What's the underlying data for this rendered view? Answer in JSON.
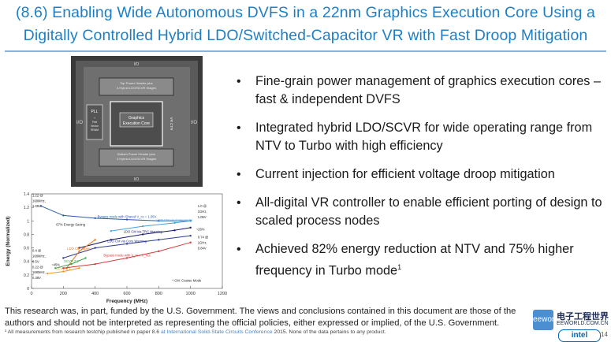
{
  "title": {
    "line1": "(8.6) Enabling Wide Autonomous DVFS in a 22nm Graphics Execution Core Using a",
    "line2": "Digitally Controlled Hybrid LDO/Switched-Capacitor VR with Fast Droop Mitigation"
  },
  "die": {
    "top_label_1": "Top Power Header plus",
    "top_label_2": "4 Hybrid LDO/SCVR Stages",
    "bottom_label_1": "Bottom Power Header plus",
    "bottom_label_2": "4 Hybrid LDO/SCVR Stages",
    "pll_label": "PLL",
    "pll_sub_1": "+",
    "pll_sub_2": "Test",
    "pll_sub_3": "Vector",
    "pll_sub_4": "SRAM",
    "core_label_1": "Graphics",
    "core_label_2": "Execution Core",
    "io_left": "I/O",
    "io_right": "I/O",
    "vr_ctrl": "VR CTR",
    "io_top": "I/O",
    "io_bottom": "I/O"
  },
  "bullets": [
    {
      "text": "Fine-grain power management of graphics execution cores – fast & independent DVFS"
    },
    {
      "text": "Integrated hybrid LDO/SCVR for wide operating range from NTV to Turbo with high efficiency"
    },
    {
      "text": "Current injection for efficient voltage droop mitigation"
    },
    {
      "text": "All-digital VR controller to enable efficient porting of design to scaled process nodes"
    },
    {
      "text": "Achieved 82% energy reduction at NTV and 75% higher frequency in Turbo mode",
      "sup": "1"
    }
  ],
  "chart_data": {
    "type": "line",
    "title": "",
    "xlabel": "Frequency (MHz)",
    "ylabel": "Energy (Normalized)",
    "xlim": [
      0,
      1200
    ],
    "ylim": [
      0,
      1.4
    ],
    "xticks": [
      "0",
      "200",
      "400",
      "600",
      "800",
      "1000",
      "1200"
    ],
    "yticks": [
      "0",
      "0.2",
      "0.4",
      "0.6",
      "0.8",
      "1",
      "1.2",
      "1.4"
    ],
    "series": [
      {
        "name": "Bypass mode with Shared V_cc = 1.05V",
        "color": "#2a5aa8",
        "x": [
          60,
          200,
          400,
          600,
          800,
          1000
        ],
        "y": [
          1.22,
          1.08,
          1.04,
          1.02,
          1.0,
          1.0
        ]
      },
      {
        "name": "LDO CM via Core Warning",
        "color": "#2b3a8f",
        "x": [
          200,
          400,
          600,
          800,
          1000
        ],
        "y": [
          0.45,
          0.6,
          0.66,
          0.72,
          0.78
        ]
      },
      {
        "name": "LDO CM via TRC Warning",
        "color": "#1a1a6e",
        "x": [
          300,
          500,
          700,
          900,
          1000
        ],
        "y": [
          0.6,
          0.72,
          0.8,
          0.86,
          0.9
        ]
      },
      {
        "name": "LDO CM via Comparator",
        "color": "#4aa0d8",
        "x": [
          500,
          700,
          900,
          1000
        ],
        "y": [
          0.85,
          0.92,
          0.97,
          1.0
        ]
      },
      {
        "name": "LDO CM (Open)",
        "color": "#e07a2a",
        "x": [
          220,
          300,
          400
        ],
        "y": [
          0.3,
          0.55,
          0.72
        ]
      },
      {
        "name": "SCVR 2:1",
        "color": "#e89a2a",
        "x": [
          100,
          200,
          300
        ],
        "y": [
          0.22,
          0.25,
          0.3
        ]
      },
      {
        "name": "SCVR 3:2",
        "color": "#3fa34d",
        "x": [
          150,
          250,
          340
        ],
        "y": [
          0.3,
          0.36,
          0.45
        ]
      },
      {
        "name": "Bypass mode with V_in = V_out",
        "color": "#d43a3a",
        "x": [
          200,
          400,
          600,
          800,
          1000
        ],
        "y": [
          0.3,
          0.36,
          0.45,
          0.55,
          0.68
        ]
      }
    ],
    "annotations": [
      {
        "text": "1.22 @",
        "x": 0,
        "y": 1.36
      },
      {
        "text": "168MHz,",
        "x": 0,
        "y": 1.28
      },
      {
        "text": "1.05V",
        "x": 0,
        "y": 1.2
      },
      {
        "text": "67% Energy Saving",
        "x": 150,
        "y": 0.93
      },
      {
        "text": "0.4 @",
        "x": 0,
        "y": 0.54
      },
      {
        "text": "168MHz,",
        "x": 0,
        "y": 0.46
      },
      {
        "text": "0.5V",
        "x": 0,
        "y": 0.38
      },
      {
        "text": "~45%",
        "x": 120,
        "y": 0.33
      },
      {
        "text": "0.22 @",
        "x": 0,
        "y": 0.3
      },
      {
        "text": "168MHz,",
        "x": 0,
        "y": 0.22
      },
      {
        "text": "0.38V",
        "x": 0,
        "y": 0.14
      },
      {
        "text": "1.0 @",
        "x": 1040,
        "y": 1.2
      },
      {
        "text": "1GHz,",
        "x": 1040,
        "y": 1.12
      },
      {
        "text": "1.05V",
        "x": 1040,
        "y": 1.04
      },
      {
        "text": "~26%",
        "x": 1030,
        "y": 0.86
      },
      {
        "text": "0.74 @",
        "x": 1040,
        "y": 0.74
      },
      {
        "text": "1GHz,",
        "x": 1040,
        "y": 0.66
      },
      {
        "text": "0.84V",
        "x": 1040,
        "y": 0.58
      },
      {
        "text": "* CM: Coarse Mode",
        "x": 880,
        "y": 0.1
      }
    ]
  },
  "footer": {
    "text": "This research was, in part, funded by the U.S. Government. The views and conclusions contained in this document are those of the authors and should not be interpreted as representing the official policies, either expressed or implied, of the U.S. Government.",
    "footnote_pre": "¹ All measurements from research testchip published in paper 8.6",
    "footnote_link": "at International Solid-State Circuits Conference",
    "footnote_post": "2015. None of the data pertains to any product."
  },
  "watermark": {
    "box": "eeworld",
    "line1": "电子工程世界",
    "line2": "EEWORLD.COM.CN"
  },
  "logo": "intel",
  "page_number": "14",
  "colors": {
    "title": "#1f7fc4",
    "rule": "#8db4d8",
    "text": "#1a1a1a"
  }
}
